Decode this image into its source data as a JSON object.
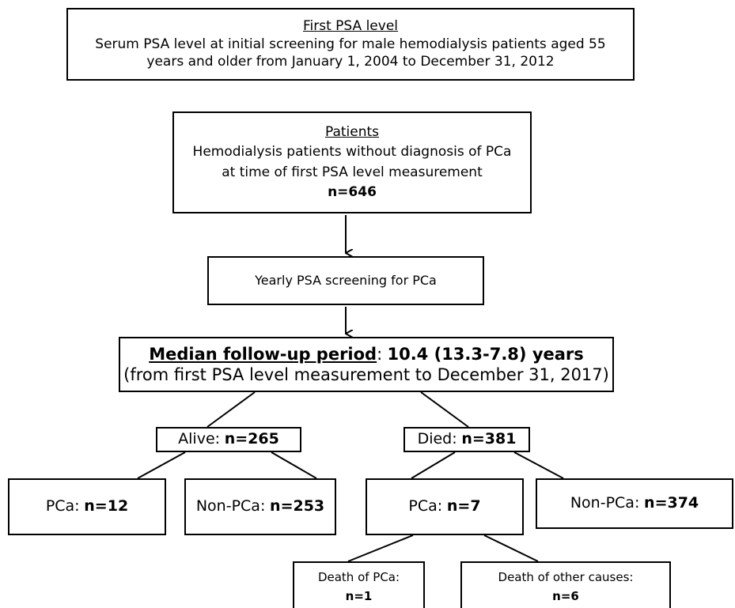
{
  "nodes": [
    {
      "title": "First PSA level",
      "lines": [
        "Serum PSA level at initial screening for male hemodialysis patients aged 55",
        "years and older from January 1, 2004 to December 31, 2012"
      ]
    },
    {
      "title": "Patients",
      "lines": [
        "Hemodialysis patients without diagnosis of PCa",
        "at time of first PSA level measurement"
      ],
      "count": "n=646"
    },
    {
      "lines": [
        "Yearly PSA screening for PCa"
      ]
    },
    {
      "title": "Median follow-up period",
      "title_suffix": ":",
      "count": "10.4 (13.3-7.8) years",
      "lines": [
        "(from first PSA level measurement to December 31, 2017)"
      ]
    },
    {
      "label": "Alive:",
      "count": "n=265"
    },
    {
      "label": "Died:",
      "count": "n=381"
    },
    {
      "label": "PCa:",
      "count": "n=12"
    },
    {
      "label": "Non-PCa:",
      "count": "n=253"
    },
    {
      "label": "PCa:",
      "count": "n=7"
    },
    {
      "label": "Non-PCa:",
      "count": "n=374"
    },
    {
      "lines": [
        "Death of PCa:"
      ],
      "count": "n=1"
    },
    {
      "lines": [
        "Death of other causes:"
      ],
      "count": "n=6"
    }
  ]
}
